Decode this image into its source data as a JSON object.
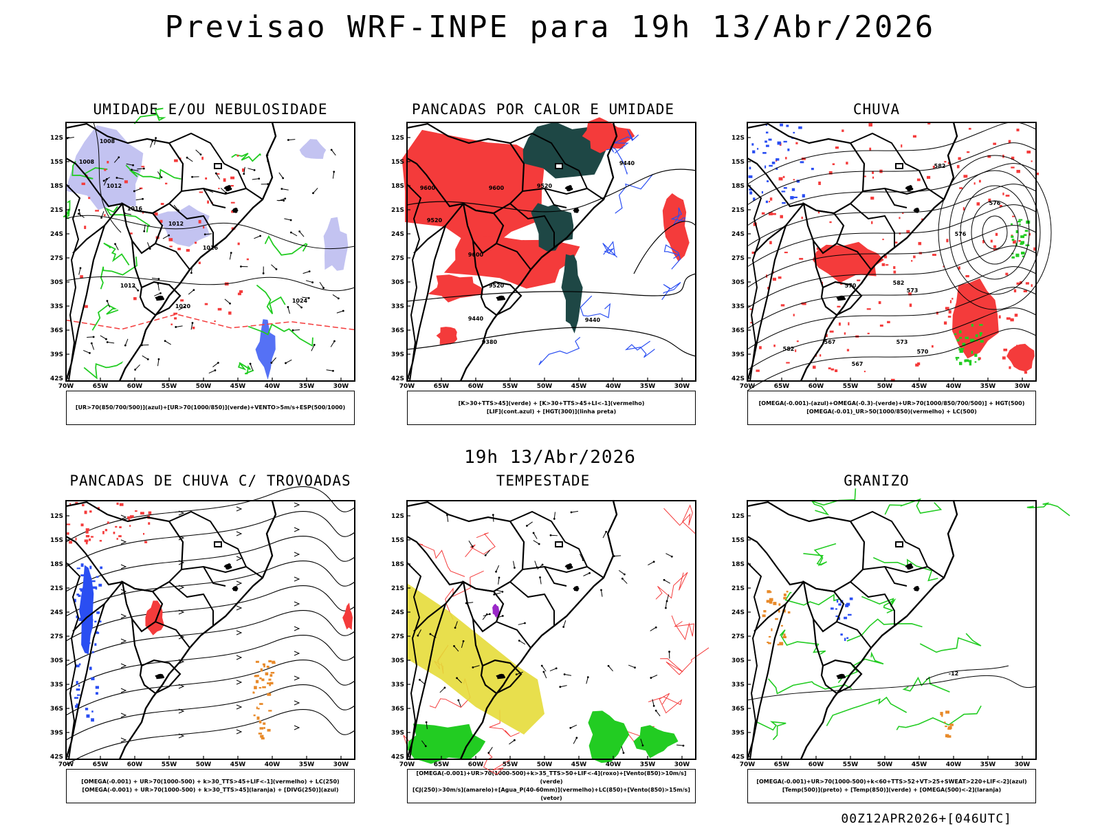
{
  "main_title": "Previsao WRF-INPE  para 19h 13/Abr/2026",
  "mid_label": "19h 13/Abr/2026",
  "footer": "00Z12APR2026+[046UTC]",
  "lat_labels": [
    "12S",
    "15S",
    "18S",
    "21S",
    "24S",
    "27S",
    "30S",
    "33S",
    "36S",
    "39S",
    "42S"
  ],
  "lon_labels": [
    "70W",
    "65W",
    "60W",
    "55W",
    "50W",
    "45W",
    "40W",
    "35W",
    "30W"
  ],
  "colors": {
    "red": "#f43b3b",
    "green": "#22cc22",
    "blue": "#2a4ef2",
    "lavender": "#b8b8ef",
    "darkteal": "#1e4745",
    "orange": "#e88a2a",
    "yellow": "#e6dc3a",
    "purple": "#9a28c8"
  },
  "panels": [
    {
      "title": "UMIDADE E/OU NEBULOSIDADE",
      "legend": [
        "[UR>70(850/700/500)](azul)+[UR>70(1000/850)](verde)+VENTO>5m/s+ESP(500/1000)"
      ],
      "isolines": [
        "1008",
        "1012",
        "1016",
        "1020",
        "1024",
        "1008",
        "1012",
        "1016",
        "1012"
      ]
    },
    {
      "title": "PANCADAS POR CALOR E UMIDADE",
      "legend": [
        "[K>30+TTS>45](verde) + [K>30+TTS>45+LI<-1](vermelho)",
        "[LIF](cont.azul) + [HGT(300)](linha preta)"
      ],
      "isolines": [
        "9600",
        "9600",
        "9520",
        "9440",
        "9600",
        "9520",
        "9520",
        "9440",
        "9440",
        "9380"
      ]
    },
    {
      "title": "CHUVA",
      "legend": [
        "[OMEGA(-0.001)-(azul)+OMEGA(-0.3)-(verde)+UR>70(1000/850/700/500)] + HGT(500)",
        "[OMEGA(-0.01)_UR>50(1000/850)(vermelho) + LC(500)"
      ],
      "isolines": [
        "582",
        "576",
        "573",
        "570",
        "567",
        "582",
        "576",
        "582",
        "573",
        "570",
        "567"
      ]
    },
    {
      "title": "PANCADAS DE CHUVA C/ TROVOADAS",
      "legend": [
        "[OMEGA(-0.001) + UR>70(1000-500) + k>30_TTS>45+LIF<-1](vermelho) + LC(250)",
        "[OMEGA(-0.001) + UR>70(1000-500) + k>30_TTS>45](laranja) + [DIVG(250)](azul)"
      ],
      "isolines": []
    },
    {
      "title": "TEMPESTADE",
      "legend": [
        "[OMEGA(-0.001)+UR>70(1000-500)+k>35_TTS>50+LIF<-4](roxo)+[Vento(850)>10m/s](verde)",
        "[CJ(250)>30m/s](amarelo)+[Agua_P(40-60mm)](vermelho)+LC(850)+[Vento(850)>15m/s](vetor)"
      ],
      "isolines": []
    },
    {
      "title": "GRANIZO",
      "legend": [
        "[OMEGA(-0.001)+UR>70(1000-500)+k<60+TTS>52+VT>25+SWEAT>220+LIF<-2](azul)",
        "[Temp(500)](preto) + [Temp(850)](verde) + [OMEGA(500)<-2](laranja)"
      ],
      "isolines": [
        "-12"
      ]
    }
  ]
}
